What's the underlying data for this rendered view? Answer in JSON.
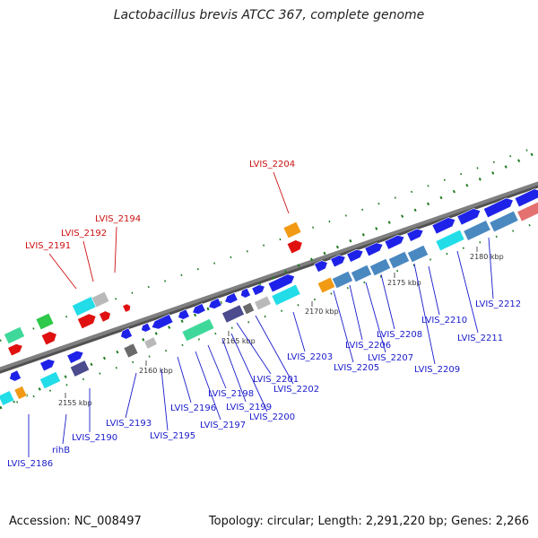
{
  "title": "Lactobacillus brevis ATCC 367, complete genome",
  "footer": {
    "accession": "Accession: NC_008497",
    "summary": "Topology: circular; Length: 2,291,220 bp; Genes: 2,266"
  },
  "colors": {
    "blue": "#1e22e8",
    "cyan": "#22dde8",
    "red": "#e01010",
    "orange": "#f29a14",
    "green": "#2ec84a",
    "mint": "#3ed99a",
    "grey": "#b9b9b9",
    "darkgrey": "#6a6a6a",
    "steel": "#4a88c0",
    "slate": "#4b4b8e",
    "pink": "#e47070",
    "label_blue": "#1a1acc",
    "label_red": "#cc1111",
    "tick_green": "#1f7a1f",
    "backbone": "#7f7f7f"
  },
  "scale_labels": [
    {
      "text": "2155 kbp"
    },
    {
      "text": "2160 kbp"
    },
    {
      "text": "2165 kbp"
    },
    {
      "text": "2170 kbp"
    },
    {
      "text": "2175 kbp"
    },
    {
      "text": "2180 kbp"
    }
  ],
  "gene_labels": [
    {
      "text": "LVIS_2186",
      "color": "label_blue"
    },
    {
      "text": "rihB",
      "color": "label_blue"
    },
    {
      "text": "LVIS_2190",
      "color": "label_blue"
    },
    {
      "text": "LVIS_2193",
      "color": "label_blue"
    },
    {
      "text": "LVIS_2195",
      "color": "label_blue"
    },
    {
      "text": "LVIS_2196",
      "color": "label_blue"
    },
    {
      "text": "LVIS_2197",
      "color": "label_blue"
    },
    {
      "text": "LVIS_2198",
      "color": "label_blue"
    },
    {
      "text": "LVIS_2199",
      "color": "label_blue"
    },
    {
      "text": "LVIS_2200",
      "color": "label_blue"
    },
    {
      "text": "LVIS_2201",
      "color": "label_blue"
    },
    {
      "text": "LVIS_2202",
      "color": "label_blue"
    },
    {
      "text": "LVIS_2203",
      "color": "label_blue"
    },
    {
      "text": "LVIS_2205",
      "color": "label_blue"
    },
    {
      "text": "LVIS_2206",
      "color": "label_blue"
    },
    {
      "text": "LVIS_2207",
      "color": "label_blue"
    },
    {
      "text": "LVIS_2208",
      "color": "label_blue"
    },
    {
      "text": "LVIS_2209",
      "color": "label_blue"
    },
    {
      "text": "LVIS_2210",
      "color": "label_blue"
    },
    {
      "text": "LVIS_2211",
      "color": "label_blue"
    },
    {
      "text": "LVIS_2212",
      "color": "label_blue"
    },
    {
      "text": "LVIS_2191",
      "color": "label_red"
    },
    {
      "text": "LVIS_2192",
      "color": "label_red"
    },
    {
      "text": "LVIS_2194",
      "color": "label_red"
    },
    {
      "text": "LVIS_2204",
      "color": "label_red"
    }
  ]
}
